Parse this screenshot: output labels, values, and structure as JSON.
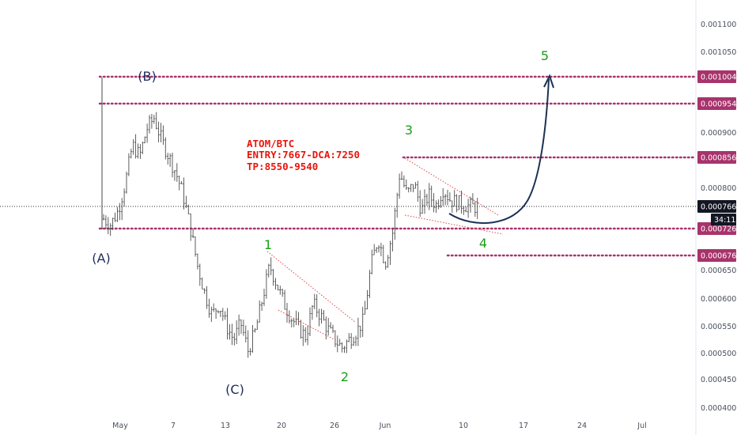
{
  "chart_data": {
    "type": "candlestick",
    "title": "",
    "annotation_text": [
      "ATOM/BTC",
      "ENTRY:7667-DCA:7250",
      "TP:8550-9540"
    ],
    "x_ticks": [
      "May",
      "7",
      "13",
      "20",
      "26",
      "Jun",
      "10",
      "17",
      "24",
      "Jul"
    ],
    "y_ticks": [
      "0.0011000",
      "0.0010500",
      "0.0009000",
      "0.0008000",
      "0.0006500",
      "0.0006000",
      "0.0005500",
      "0.0005000",
      "0.0004500",
      "0.0004000"
    ],
    "y_range": [
      0.00039,
      0.00115
    ],
    "price_levels": [
      {
        "label": "0.0010040",
        "value": 0.001004
      },
      {
        "label": "0.0009541",
        "value": 0.0009541
      },
      {
        "label": "0.0008560",
        "value": 0.000856
      },
      {
        "label": "0.0007263",
        "value": 0.0007263
      },
      {
        "label": "0.0006764",
        "value": 0.0006764
      }
    ],
    "current_price": {
      "label": "0.0007667",
      "value": 0.0007667,
      "countdown": "34:11"
    },
    "wave_labels": [
      {
        "text": "(A)",
        "color": "#1e2a5a"
      },
      {
        "text": "(B)",
        "color": "#1e2a5a"
      },
      {
        "text": "(C)",
        "color": "#1e2a5a"
      },
      {
        "text": "1",
        "color": "#1a9c1a"
      },
      {
        "text": "2",
        "color": "#1a9c1a"
      },
      {
        "text": "3",
        "color": "#1a9c1a"
      },
      {
        "text": "4",
        "color": "#1a9c1a"
      },
      {
        "text": "5",
        "color": "#1a9c1a"
      }
    ],
    "price_path": [
      [
        0,
        0.000745
      ],
      [
        1,
        0.000735
      ],
      [
        2,
        0.00076
      ],
      [
        3,
        0.00081
      ],
      [
        4,
        0.00088
      ],
      [
        5,
        0.00086
      ],
      [
        6,
        0.00091
      ],
      [
        7,
        0.00093
      ],
      [
        8,
        0.00089
      ],
      [
        9,
        0.00086
      ],
      [
        10,
        0.00083
      ],
      [
        11,
        0.00079
      ],
      [
        12,
        0.00073
      ],
      [
        13,
        0.00066
      ],
      [
        14,
        0.00061
      ],
      [
        15,
        0.00057
      ],
      [
        16,
        0.00059
      ],
      [
        17,
        0.00055
      ],
      [
        18,
        0.000525
      ],
      [
        19,
        0.000555
      ],
      [
        20,
        0.000505
      ],
      [
        21,
        0.00054
      ],
      [
        22,
        0.0006
      ],
      [
        23,
        0.00066
      ],
      [
        24,
        0.000625
      ],
      [
        25,
        0.00059
      ],
      [
        26,
        0.000565
      ],
      [
        27,
        0.000545
      ],
      [
        28,
        0.00053
      ],
      [
        29,
        0.00059
      ],
      [
        30,
        0.00057
      ],
      [
        31,
        0.000545
      ],
      [
        32,
        0.000525
      ],
      [
        33,
        0.00051
      ],
      [
        34,
        0.000525
      ],
      [
        35,
        0.00054
      ],
      [
        36,
        0.00056
      ],
      [
        37,
        0.00066
      ],
      [
        38,
        0.00071
      ],
      [
        39,
        0.000665
      ],
      [
        40,
        0.00072
      ],
      [
        41,
        0.00083
      ],
      [
        42,
        0.00079
      ],
      [
        43,
        0.00081
      ],
      [
        44,
        0.00076
      ],
      [
        45,
        0.00079
      ],
      [
        46,
        0.00077
      ],
      [
        47,
        0.0008
      ],
      [
        48,
        0.00078
      ],
      [
        49,
        0.000775
      ],
      [
        50,
        0.00077
      ],
      [
        51,
        0.000768
      ],
      [
        52,
        0.000767
      ]
    ],
    "grid": false,
    "legend": "none"
  }
}
